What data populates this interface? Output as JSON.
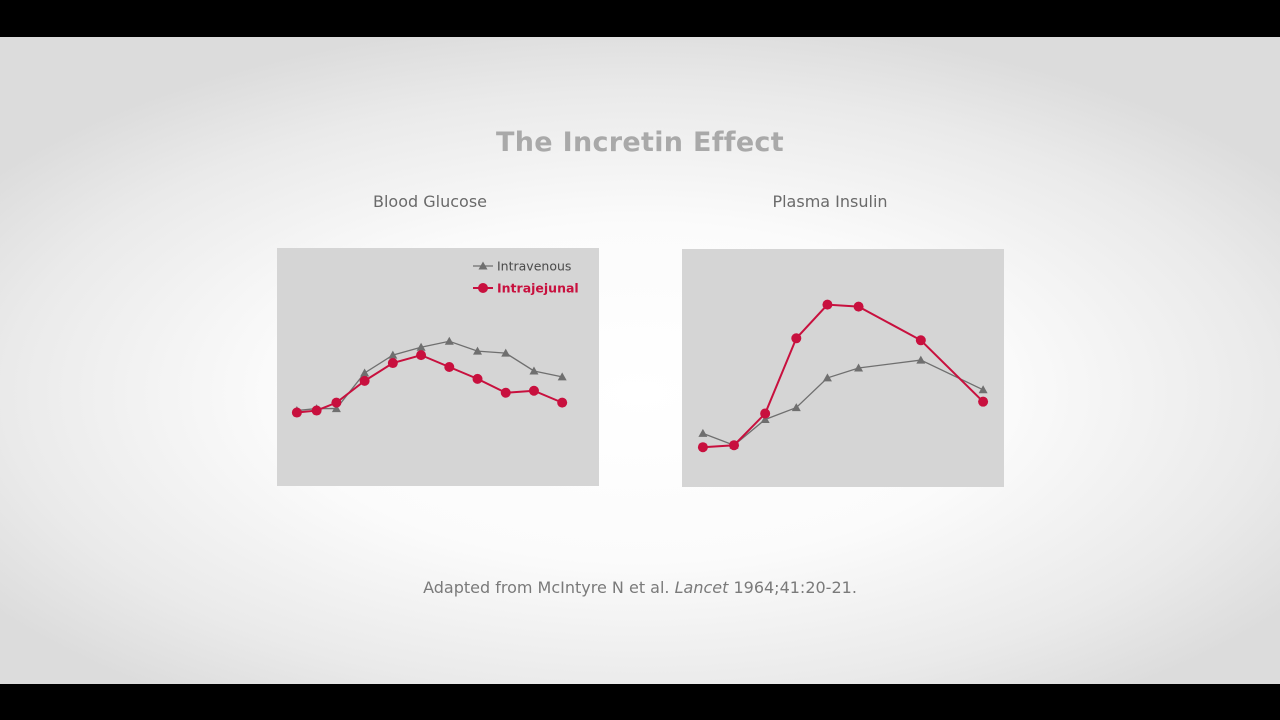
{
  "slide": {
    "title": "The Incretin Effect",
    "citation": {
      "prefix": "Adapted from McIntyre N et al. ",
      "journal": "Lancet",
      "suffix": " 1964;41:20-21."
    }
  },
  "colors": {
    "intravenous": "#6f6f6f",
    "intrajejunal": "#c8103e",
    "panel_bg": "#d5d5d5"
  },
  "chart_data": [
    {
      "type": "line",
      "title": "Blood Glucose",
      "x": [
        0,
        1,
        2,
        3,
        4,
        5,
        6,
        7,
        8,
        9,
        10
      ],
      "xlim": [
        -0.35,
        10.35
      ],
      "ylim": [
        0,
        100
      ],
      "legend_position": "top-right",
      "series": [
        {
          "name": "Intravenous",
          "marker": "triangle",
          "x": [
            0,
            0.7,
            1.4,
            2.4,
            3.4,
            4.4,
            5.4,
            6.4,
            7.4,
            8.4,
            9.4
          ],
          "values": [
            28,
            29,
            29,
            47,
            56,
            60,
            63,
            58,
            57,
            48,
            45
          ]
        },
        {
          "name": "Intrajejunal",
          "marker": "circle",
          "x": [
            0,
            0.7,
            1.4,
            2.4,
            3.4,
            4.4,
            5.4,
            6.4,
            7.4,
            8.4,
            9.4
          ],
          "values": [
            27,
            28,
            32,
            43,
            52,
            56,
            50,
            44,
            37,
            38,
            32
          ]
        }
      ]
    },
    {
      "type": "line",
      "title": "Plasma Insulin",
      "x": [
        0,
        1,
        2,
        3,
        4,
        5,
        6,
        7,
        8,
        9
      ],
      "xlim": [
        -0.35,
        9.35
      ],
      "ylim": [
        0,
        100
      ],
      "series": [
        {
          "name": "Intravenous",
          "marker": "triangle",
          "x": [
            0,
            1,
            2,
            3,
            4,
            5,
            7,
            9
          ],
          "values": [
            17,
            11,
            24,
            30,
            45,
            50,
            54,
            39
          ]
        },
        {
          "name": "Intrajejunal",
          "marker": "circle",
          "x": [
            0,
            1,
            2,
            3,
            4,
            5,
            7,
            9
          ],
          "values": [
            10,
            11,
            27,
            65,
            82,
            81,
            64,
            33
          ]
        }
      ]
    }
  ]
}
